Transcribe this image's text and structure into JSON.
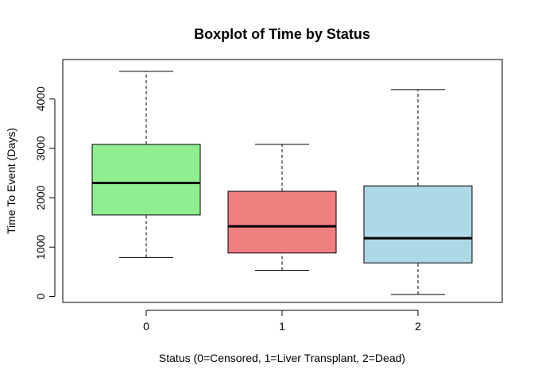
{
  "chart_data": {
    "type": "box",
    "title": "Boxplot of Time by Status",
    "xlabel": "Status (0=Censored, 1=Liver Transplant, 2=Dead)",
    "ylabel": "Time To Event (Days)",
    "ylim": [
      0,
      4600
    ],
    "yticks": [
      0,
      1000,
      2000,
      3000,
      4000
    ],
    "ytick_labels": [
      "0",
      "1000",
      "2000",
      "3000",
      "4000"
    ],
    "grid": false,
    "categories": [
      "0",
      "1",
      "2"
    ],
    "boxes": [
      {
        "category": "0",
        "whisker_low": 790,
        "q1": 1650,
        "median": 2300,
        "q3": 3080,
        "whisker_high": 4560,
        "color": "#90EE90"
      },
      {
        "category": "1",
        "whisker_low": 530,
        "q1": 880,
        "median": 1420,
        "q3": 2130,
        "whisker_high": 3080,
        "color": "#F08080"
      },
      {
        "category": "2",
        "whisker_low": 40,
        "q1": 680,
        "median": 1180,
        "q3": 2240,
        "whisker_high": 4190,
        "color": "#ADD8E6"
      }
    ]
  }
}
